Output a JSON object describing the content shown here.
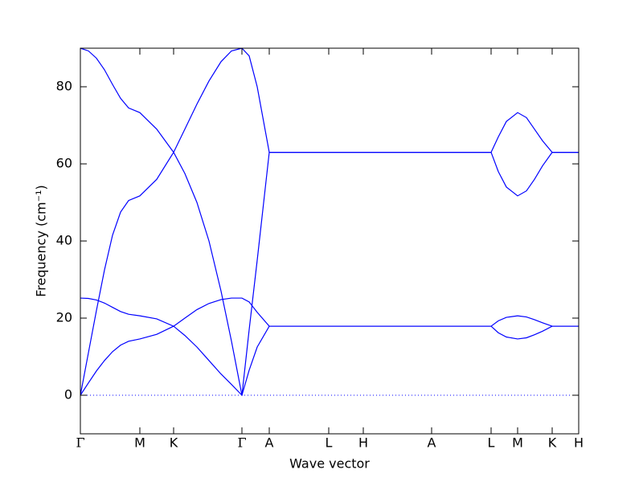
{
  "chart_data": {
    "type": "line",
    "xlabel": "Wave vector",
    "ylabel": "Frequency (cm⁻¹)",
    "x": [
      0,
      10,
      20,
      30,
      40,
      50,
      60,
      74,
      95,
      116,
      130,
      145,
      160,
      175,
      188,
      201,
      210,
      220,
      235,
      309,
      352,
      437,
      511,
      520,
      530,
      544,
      555,
      565,
      575,
      587,
      620
    ],
    "series": [
      {
        "color": "#0000ff",
        "values": [
          90,
          89.3,
          87.4,
          84.4,
          80.6,
          77,
          74.5,
          73.3,
          69,
          63,
          57.5,
          50,
          40,
          27,
          14,
          0,
          17,
          35,
          63,
          63,
          63,
          63,
          63,
          67,
          71,
          73.3,
          72,
          69,
          66,
          63,
          63
        ]
      },
      {
        "color": "#0000ff",
        "values": [
          0,
          11,
          22,
          32.5,
          41.5,
          47.5,
          50.5,
          51.7,
          56,
          63,
          69,
          75.5,
          81.5,
          86.5,
          89.3,
          90,
          88,
          80,
          63,
          63,
          63,
          63,
          63,
          58,
          54,
          51.7,
          53,
          56,
          59.5,
          63,
          63
        ]
      },
      {
        "color": "#0000ff",
        "values": [
          25.2,
          25.1,
          24.7,
          23.9,
          22.8,
          21.7,
          21,
          20.6,
          19.8,
          17.9,
          15.5,
          12.5,
          9,
          5.5,
          2.8,
          0,
          6.5,
          12.5,
          17.9,
          17.9,
          17.9,
          17.9,
          17.9,
          19.3,
          20.2,
          20.6,
          20.3,
          19.6,
          18.8,
          17.9,
          17.9
        ]
      },
      {
        "color": "#0000ff",
        "values": [
          0,
          3.2,
          6.3,
          9,
          11.3,
          13,
          14,
          14.6,
          15.8,
          17.9,
          20,
          22.2,
          23.8,
          24.8,
          25.2,
          25.2,
          24.2,
          21.5,
          17.9,
          17.9,
          17.9,
          17.9,
          17.9,
          16.2,
          15.1,
          14.6,
          14.9,
          15.7,
          16.6,
          17.9,
          17.9
        ]
      }
    ],
    "xlim": [
      0,
      620
    ],
    "ylim": [
      -10,
      90
    ],
    "xticks": [
      {
        "value": 0,
        "label": "Γ"
      },
      {
        "value": 74,
        "label": "M"
      },
      {
        "value": 116,
        "label": "K"
      },
      {
        "value": 201,
        "label": "Γ"
      },
      {
        "value": 235,
        "label": "A"
      },
      {
        "value": 309,
        "label": "L"
      },
      {
        "value": 352,
        "label": "H"
      },
      {
        "value": 437,
        "label": "A"
      },
      {
        "value": 511,
        "label": "L"
      },
      {
        "value": 544,
        "label": "M"
      },
      {
        "value": 587,
        "label": "K"
      },
      {
        "value": 620,
        "label": "H"
      }
    ],
    "yticks": [
      0,
      20,
      40,
      60,
      80
    ],
    "zero_line": true
  }
}
